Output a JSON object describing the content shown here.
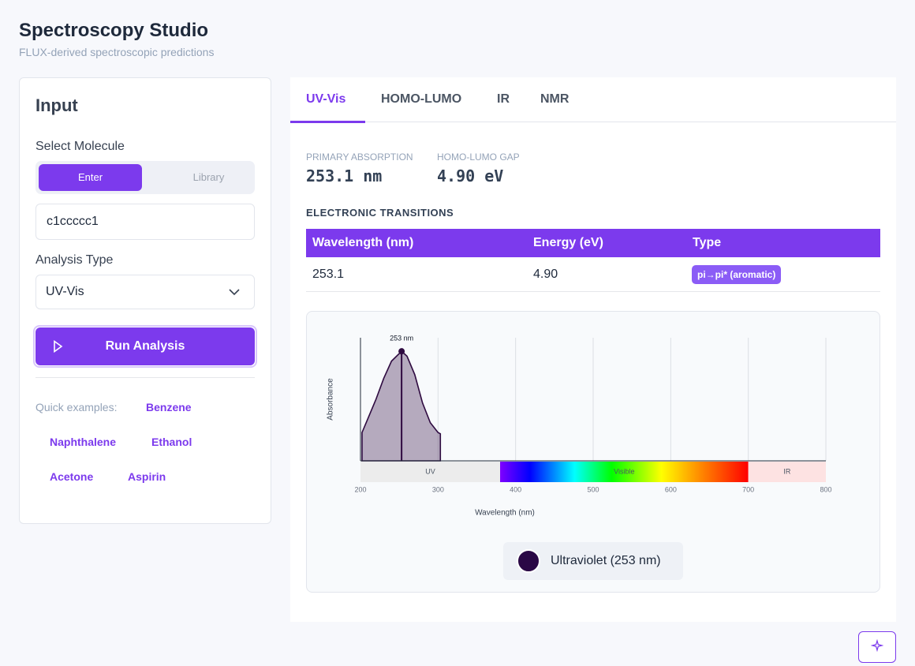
{
  "header": {
    "title": "Spectroscopy Studio",
    "subtitle": "FLUX-derived spectroscopic predictions"
  },
  "input_panel": {
    "title": "Input",
    "molecule_label": "Select Molecule",
    "mode_tabs": [
      "Enter",
      "Library"
    ],
    "smiles": "c1ccccc1",
    "analysis_label": "Analysis Type",
    "analysis_value": "UV-Vis",
    "run_button": "Run Analysis",
    "examples_label": "Quick examples:",
    "examples": [
      "Benzene",
      "Naphthalene",
      "Ethanol",
      "Acetone",
      "Aspirin"
    ]
  },
  "tabs": [
    "UV-Vis",
    "HOMO-LUMO",
    "IR",
    "NMR"
  ],
  "metrics": [
    {
      "label": "PRIMARY ABSORPTION",
      "value": "253.1 nm"
    },
    {
      "label": "HOMO-LUMO GAP",
      "value": "4.90 eV"
    }
  ],
  "transitions": {
    "title": "ELECTRONIC TRANSITIONS",
    "columns": [
      "Wavelength (nm)",
      "Energy (eV)",
      "Type"
    ],
    "rows": [
      [
        "253.1",
        "4.90",
        "pi→pi* (aromatic)"
      ]
    ]
  },
  "chart_data": {
    "type": "area",
    "xlabel": "Wavelength (nm)",
    "ylabel": "Absorbance",
    "x": [
      202,
      210,
      220,
      230,
      240,
      253,
      260,
      270,
      280,
      290,
      300,
      303
    ],
    "values": [
      0.23,
      0.35,
      0.5,
      0.67,
      0.81,
      0.89,
      0.85,
      0.7,
      0.47,
      0.31,
      0.23,
      0.22
    ],
    "color": "#2e0a40",
    "peak_label": "253 nm",
    "xlim": [
      200,
      800
    ],
    "xticks": [
      200,
      300,
      400,
      500,
      600,
      700,
      800
    ],
    "ylim": [
      0,
      1
    ],
    "grid": true,
    "bands": [
      {
        "name": "UV",
        "range": [
          200,
          380
        ],
        "color": "#ececec"
      },
      {
        "name": "Visible",
        "range": [
          380,
          700
        ]
      },
      {
        "name": "IR",
        "range": [
          700,
          800
        ],
        "color": "#fde2e2"
      }
    ]
  },
  "color_chip": {
    "label": "Ultraviolet (253 nm)",
    "color": "#2a0845"
  }
}
